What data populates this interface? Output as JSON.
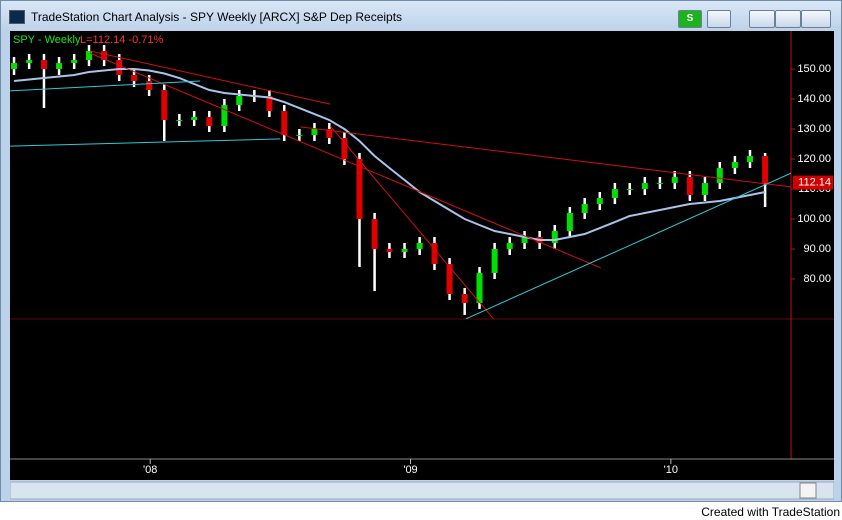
{
  "window": {
    "title": "TradeStation Chart Analysis - SPY Weekly [ARCX] S&P Dep Receipts",
    "strategy_button": "S"
  },
  "footer": "Created with TradeStation",
  "chart_data": {
    "type": "candlestick",
    "symbol_label": "SPY - Weekly",
    "last_label": "L=112.14 -0.71%",
    "last_price": 112.14,
    "up_color": "#00e000",
    "down_color": "#e00000",
    "wick_color": "#ffffff",
    "x": [
      2007.477,
      2007.535,
      2007.592,
      2007.65,
      2007.708,
      2007.765,
      2007.823,
      2007.881,
      2007.938,
      2007.996,
      2008.054,
      2008.112,
      2008.169,
      2008.227,
      2008.285,
      2008.342,
      2008.4,
      2008.458,
      2008.515,
      2008.573,
      2008.631,
      2008.688,
      2008.746,
      2008.804,
      2008.862,
      2008.919,
      2008.977,
      2009.035,
      2009.092,
      2009.15,
      2009.208,
      2009.265,
      2009.323,
      2009.381,
      2009.438,
      2009.496,
      2009.554,
      2009.612,
      2009.669,
      2009.727,
      2009.785,
      2009.842,
      2009.9,
      2009.958,
      2010.015,
      2010.073,
      2010.131,
      2010.188,
      2010.246,
      2010.304,
      2010.362
    ],
    "open": [
      150,
      152,
      153,
      150,
      152,
      153,
      156,
      153,
      148,
      146,
      143,
      133,
      133,
      134,
      131,
      138,
      141,
      141,
      136,
      128,
      128,
      130,
      127,
      120,
      100,
      90,
      89,
      90,
      92,
      85,
      75,
      72,
      82,
      90,
      92,
      94,
      92,
      96,
      102,
      105,
      107,
      110,
      110,
      112,
      112,
      114,
      108,
      112,
      117,
      119,
      121
    ],
    "high": [
      154,
      155,
      155,
      154,
      155,
      158,
      158,
      155,
      150,
      148,
      145,
      135,
      136,
      136,
      140,
      143,
      143,
      143,
      138,
      130,
      132,
      132,
      129,
      122,
      102,
      92,
      92,
      94,
      94,
      87,
      77,
      84,
      92,
      94,
      96,
      96,
      98,
      104,
      107,
      109,
      112,
      112,
      114,
      114,
      116,
      116,
      114,
      119,
      121,
      123,
      122
    ],
    "low": [
      148,
      150,
      137,
      148,
      150,
      151,
      151,
      146,
      144,
      141,
      126,
      131,
      131,
      129,
      129,
      136,
      139,
      134,
      126,
      126,
      126,
      125,
      118,
      84,
      76,
      87,
      87,
      88,
      83,
      73,
      68,
      70,
      80,
      88,
      90,
      90,
      90,
      94,
      100,
      103,
      105,
      108,
      108,
      110,
      110,
      106,
      106,
      110,
      115,
      117,
      104
    ],
    "close": [
      152,
      153,
      150,
      152,
      153,
      156,
      153,
      148,
      146,
      143,
      133,
      133,
      134,
      131,
      138,
      141,
      141,
      136,
      128,
      128,
      130,
      127,
      120,
      100,
      90,
      89,
      90,
      92,
      85,
      75,
      72,
      82,
      90,
      92,
      94,
      92,
      96,
      102,
      105,
      107,
      110,
      110,
      112,
      112,
      114,
      108,
      112,
      117,
      119,
      121,
      112
    ],
    "ma": {
      "color": "#a8c4ea",
      "values": [
        146,
        146.5,
        147,
        147.5,
        148,
        149,
        149.5,
        150,
        150,
        149.5,
        148.5,
        147,
        145,
        143,
        142,
        141.5,
        141,
        140.5,
        139,
        137,
        135,
        133,
        130,
        126,
        121,
        117,
        113,
        109,
        106,
        103,
        100,
        98,
        96,
        95,
        94,
        93,
        93,
        94,
        95,
        97,
        99,
        101,
        102,
        103,
        104,
        105,
        105.5,
        106,
        107,
        108,
        109
      ]
    },
    "trendlines": [
      {
        "color": "#d01010",
        "x": [
          2007.769,
          2008.692
        ],
        "y": [
          156,
          138.3
        ]
      },
      {
        "color": "#d01010",
        "x": [
          2007.769,
          2009.731
        ],
        "y": [
          155.3,
          83.7
        ]
      },
      {
        "color": "#d01010",
        "x": [
          2008.577,
          2010.462
        ],
        "y": [
          130.7,
          110.7
        ]
      },
      {
        "color": "#d01010",
        "x": [
          2008.692,
          2009.319
        ],
        "y": [
          131,
          66.7
        ]
      },
      {
        "color": "#30c8d8",
        "x": [
          2007.462,
          2008.5
        ],
        "y": [
          124.3,
          126.7
        ]
      },
      {
        "color": "#30c8d8",
        "x": [
          2009.212,
          2010.462
        ],
        "y": [
          66.7,
          115.3
        ]
      },
      {
        "color": "#30c8d8",
        "x": [
          2007.462,
          2008.192
        ],
        "y": [
          142.7,
          146
        ]
      }
    ],
    "xlim": [
      2007.4615,
      2010.4615
    ],
    "xticks": [
      {
        "value": 2008,
        "label": "'08"
      },
      {
        "value": 2009,
        "label": "'09"
      },
      {
        "value": 2010,
        "label": "'10"
      }
    ],
    "ylim": [
      66.67,
      162.67
    ],
    "yticks": [
      {
        "value": 80,
        "label": "80.00"
      },
      {
        "value": 90,
        "label": "90.00"
      },
      {
        "value": 100,
        "label": "100.00"
      },
      {
        "value": 110,
        "label": "110.00"
      },
      {
        "value": 120,
        "label": "120.00"
      },
      {
        "value": 130,
        "label": "130.00"
      },
      {
        "value": 140,
        "label": "140.00"
      },
      {
        "value": 150,
        "label": "150.00"
      }
    ]
  }
}
